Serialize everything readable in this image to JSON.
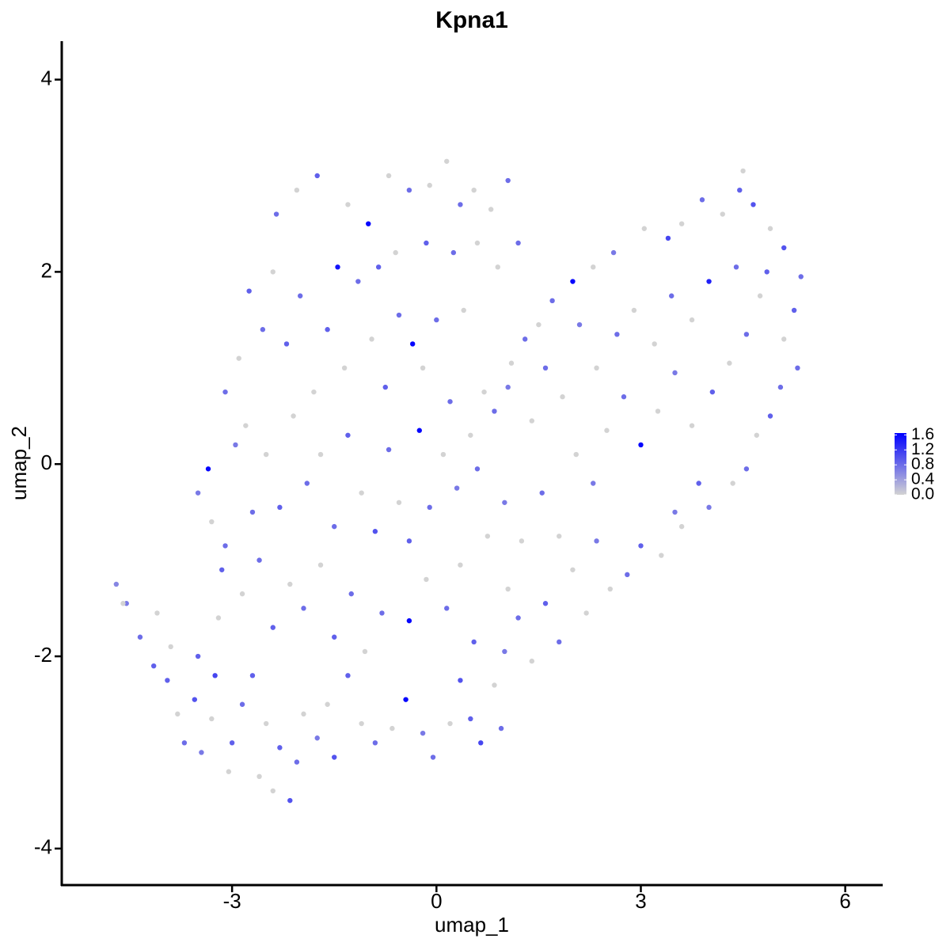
{
  "chart_data": {
    "type": "scatter",
    "title": "Kpna1",
    "xlabel": "umap_1",
    "ylabel": "umap_2",
    "x": [
      -4.7,
      -4.55,
      -4.35,
      -4.1,
      -4.15,
      -3.95,
      -3.9,
      -3.8,
      -3.7,
      -3.55,
      -3.45,
      -3.3,
      -3.5,
      -3.2,
      -3.25,
      -3.0,
      -3.05,
      -2.85,
      -2.6,
      -2.7,
      -2.5,
      -2.3,
      -2.4,
      -2.15,
      -2.05,
      -1.95,
      -1.75,
      -1.5,
      -1.6,
      -1.3,
      -1.1,
      -0.9,
      -0.65,
      -0.45,
      -0.2,
      -0.05,
      0.2,
      0.35,
      0.5,
      0.65,
      0.95,
      0.85,
      1.0,
      1.2,
      1.05,
      1.4,
      1.6,
      1.8,
      2.0,
      2.2,
      2.35,
      2.55,
      2.8,
      3.0,
      3.3,
      3.5,
      3.6,
      3.85,
      4.0,
      4.35,
      4.55,
      4.7,
      4.9,
      5.05,
      5.3,
      5.1,
      5.25,
      5.35,
      5.1,
      4.9,
      4.65,
      4.45,
      4.5,
      4.2,
      3.9,
      3.6,
      3.4,
      3.05,
      2.6,
      2.3,
      2.0,
      1.7,
      1.5,
      1.3,
      1.1,
      1.05,
      0.85,
      0.7,
      0.5,
      0.6,
      0.3,
      0.1,
      -0.1,
      -0.25,
      -0.4,
      -0.55,
      -0.7,
      -0.9,
      -1.1,
      -1.3,
      -1.5,
      -1.7,
      -1.9,
      -2.1,
      -2.3,
      -2.5,
      -2.7,
      -2.95,
      -3.1,
      -3.35,
      -3.5,
      -3.3,
      -3.15,
      -2.85,
      -2.6,
      -2.4,
      -2.15,
      -1.95,
      -1.7,
      -1.5,
      -1.25,
      -1.05,
      -0.8,
      -0.4,
      -0.15,
      0.15,
      0.35,
      0.55,
      0.75,
      1.0,
      1.25,
      1.55,
      1.8,
      2.05,
      2.3,
      2.5,
      2.75,
      3.0,
      3.25,
      3.5,
      3.75,
      4.05,
      4.3,
      4.55,
      4.75,
      4.85,
      4.4,
      4.0,
      3.75,
      3.45,
      3.2,
      2.9,
      2.65,
      2.35,
      2.1,
      1.85,
      1.6,
      1.4,
      0.2,
      0.0,
      -0.2,
      -0.35,
      -0.55,
      -0.75,
      -0.95,
      -1.15,
      -1.35,
      -1.45,
      -1.6,
      -1.8,
      -2.0,
      -2.2,
      -2.4,
      -2.55,
      -2.75,
      -2.9,
      -3.1,
      -2.8,
      -2.35,
      -2.05,
      -1.75,
      -1.3,
      -1.0,
      -0.7,
      -0.4,
      -0.1,
      0.15,
      0.35,
      0.55,
      0.8,
      1.05,
      1.2,
      0.9,
      0.6,
      0.25,
      -0.15,
      -0.6,
      -0.85,
      0.4,
      -4.6
    ],
    "y": [
      -1.25,
      -1.45,
      -1.8,
      -1.55,
      -2.1,
      -2.25,
      -1.9,
      -2.6,
      -2.9,
      -2.45,
      -3.0,
      -2.65,
      -2.0,
      -1.6,
      -2.2,
      -2.9,
      -3.2,
      -2.5,
      -3.25,
      -2.2,
      -2.7,
      -2.95,
      -3.4,
      -3.5,
      -3.1,
      -2.6,
      -2.85,
      -3.05,
      -2.5,
      -2.2,
      -2.7,
      -2.9,
      -2.75,
      -2.45,
      -2.8,
      -3.05,
      -2.7,
      -2.25,
      -2.65,
      -2.9,
      -2.75,
      -2.3,
      -1.95,
      -1.6,
      -1.3,
      -2.05,
      -1.45,
      -1.85,
      -1.1,
      -1.55,
      -0.8,
      -1.3,
      -1.15,
      -0.85,
      -0.95,
      -0.5,
      -0.65,
      -0.2,
      -0.45,
      -0.2,
      -0.05,
      0.3,
      0.5,
      0.8,
      1.0,
      1.3,
      1.6,
      1.95,
      2.25,
      2.45,
      2.7,
      2.85,
      3.05,
      2.6,
      2.75,
      2.5,
      2.35,
      2.45,
      2.2,
      2.05,
      1.9,
      1.7,
      1.45,
      1.3,
      1.05,
      0.8,
      0.55,
      0.75,
      0.3,
      -0.05,
      -0.25,
      0.1,
      -0.45,
      0.35,
      -0.8,
      -0.4,
      0.15,
      -0.7,
      -0.3,
      0.3,
      -0.65,
      0.1,
      -0.2,
      0.5,
      -0.45,
      0.1,
      -0.5,
      0.2,
      -0.85,
      -0.05,
      -0.3,
      -0.6,
      -1.1,
      -1.35,
      -1.0,
      -1.7,
      -1.25,
      -1.5,
      -1.05,
      -1.8,
      -1.35,
      -1.95,
      -1.55,
      -1.63,
      -1.2,
      -1.5,
      -1.05,
      -1.85,
      -0.75,
      -0.4,
      -0.8,
      -0.3,
      -0.75,
      0.1,
      -0.2,
      0.35,
      0.7,
      0.2,
      0.55,
      0.95,
      0.4,
      0.75,
      1.05,
      1.35,
      1.75,
      2.0,
      2.05,
      1.9,
      1.5,
      1.75,
      1.25,
      1.6,
      1.35,
      1.0,
      1.45,
      0.7,
      1.0,
      0.45,
      0.65,
      1.5,
      1.0,
      1.25,
      1.55,
      0.8,
      1.3,
      1.9,
      1.0,
      2.05,
      1.4,
      0.75,
      1.75,
      1.25,
      2.0,
      1.4,
      1.8,
      1.1,
      0.75,
      0.4,
      2.6,
      2.85,
      3.0,
      2.7,
      2.5,
      3.0,
      2.85,
      2.9,
      3.15,
      2.7,
      2.85,
      2.65,
      2.95,
      2.3,
      2.05,
      2.3,
      2.2,
      2.3,
      2.2,
      2.05,
      1.6,
      -1.45
    ],
    "values": [
      0.6,
      0.7,
      0.8,
      0,
      0.9,
      0.9,
      0,
      0,
      0.8,
      1.0,
      0.7,
      0,
      0.9,
      0,
      1.1,
      0.9,
      0,
      0.8,
      0,
      0.9,
      0,
      0.9,
      0,
      1.0,
      0.8,
      0,
      0.7,
      1.0,
      0,
      0.9,
      0,
      0.8,
      0,
      1.6,
      0.7,
      0.8,
      0,
      1.0,
      0.9,
      1.1,
      0.8,
      0,
      0.7,
      0.8,
      0,
      0,
      0.9,
      0.8,
      0,
      0,
      0.7,
      0,
      0.8,
      0.9,
      0,
      0.7,
      0,
      0.9,
      0.7,
      0,
      0.8,
      0,
      0.9,
      0.8,
      0.8,
      0,
      0.9,
      0.8,
      1.0,
      0,
      1.0,
      0.9,
      0,
      0,
      0.8,
      0,
      1.1,
      0,
      0.7,
      0,
      1.6,
      0.8,
      0,
      0.8,
      0,
      0.7,
      0.8,
      0,
      0,
      0.8,
      0.7,
      0,
      0.8,
      1.6,
      0.9,
      0,
      0.8,
      1.0,
      0,
      0.9,
      0.8,
      0,
      0.8,
      0,
      0.9,
      0,
      0.8,
      0.7,
      0.8,
      1.6,
      0.7,
      0,
      0.9,
      0,
      0.8,
      0.9,
      0,
      0.8,
      0,
      0.9,
      0.8,
      0,
      0.8,
      1.6,
      0,
      0.8,
      0,
      0.9,
      0,
      0.7,
      0,
      0.8,
      0,
      0,
      0.7,
      0,
      0.8,
      1.6,
      0,
      0.7,
      0,
      0.9,
      0,
      0.8,
      0,
      0.9,
      0.8,
      1.4,
      0,
      0.8,
      0,
      0,
      0.8,
      0,
      0.7,
      0,
      0.8,
      0,
      0.8,
      0.8,
      0,
      1.6,
      0.8,
      0.9,
      0,
      0.8,
      0,
      1.5,
      0.9,
      0,
      0.8,
      0.9,
      0,
      0.8,
      0.9,
      0,
      0.8,
      0,
      0.8,
      0,
      0.9,
      0,
      1.6,
      0,
      0.8,
      0,
      0,
      0.8,
      0,
      0,
      0.8,
      0.8,
      0,
      0,
      0.8,
      0.9,
      0,
      0.9,
      0,
      0
    ],
    "xlim": [
      -5.5,
      6.55
    ],
    "ylim": [
      -4.38,
      4.4
    ],
    "xticks": [
      -3,
      0,
      3,
      6
    ],
    "yticks": [
      -4,
      -2,
      0,
      2,
      4
    ],
    "color_low": "#d3d3d3",
    "color_high": "#0000ff",
    "colorbar_lim": [
      0,
      1.65
    ],
    "colorbar_ticks": [
      {
        "value": 0,
        "label": "0.0"
      },
      {
        "value": 0.4,
        "label": "0.4"
      },
      {
        "value": 0.8,
        "label": "0.8"
      },
      {
        "value": 1.2,
        "label": "1.2"
      },
      {
        "value": 1.6,
        "label": "1.6"
      }
    ]
  }
}
